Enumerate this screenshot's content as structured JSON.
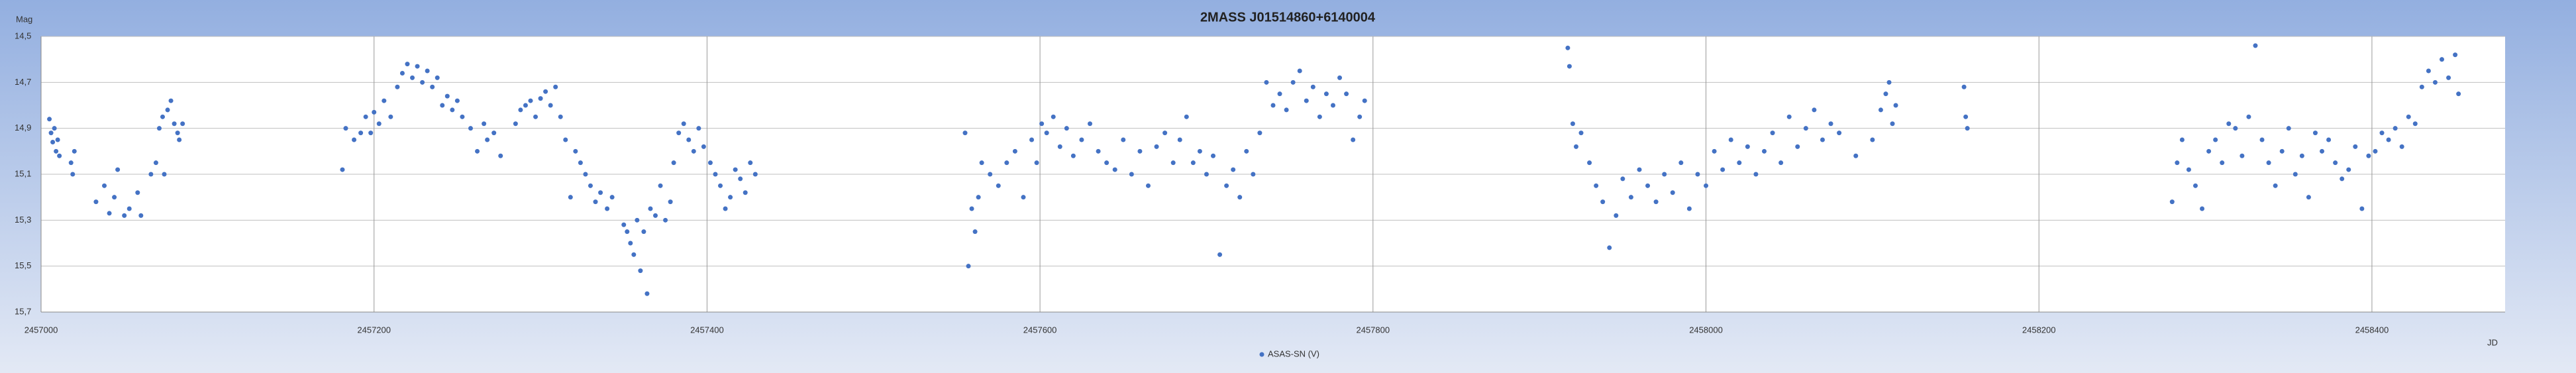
{
  "chart_data": {
    "type": "scatter",
    "title": "2MASS J01514860+6140004",
    "x_label": "JD",
    "y_label": "Mag",
    "xlim": [
      2457000,
      2458480
    ],
    "xticks": [
      2457000,
      2457200,
      2457400,
      2457600,
      2457800,
      2458000,
      2458200,
      2458400
    ],
    "ylim": [
      15.7,
      14.5
    ],
    "y_inverted": true,
    "yticks": [
      {
        "value": 14.5,
        "label": "14,5"
      },
      {
        "value": 14.7,
        "label": "14,7"
      },
      {
        "value": 14.9,
        "label": "14,9"
      },
      {
        "value": 15.1,
        "label": "15,1"
      },
      {
        "value": 15.3,
        "label": "15,3"
      },
      {
        "value": 15.5,
        "label": "15,5"
      },
      {
        "value": 15.7,
        "label": "15,7"
      }
    ],
    "grid": true,
    "legend": "bottom",
    "series": [
      {
        "name": "ASAS-SN (V)",
        "color": "#4472c4",
        "x": [
          2457005,
          2457006,
          2457007,
          2457008,
          2457009,
          2457010,
          2457011,
          2457018,
          2457019,
          2457020,
          2457033,
          2457038,
          2457041,
          2457044,
          2457046,
          2457050,
          2457053,
          2457058,
          2457060,
          2457066,
          2457069,
          2457071,
          2457073,
          2457074,
          2457076,
          2457078,
          2457080,
          2457082,
          2457083,
          2457085,
          2457181,
          2457183,
          2457188,
          2457192,
          2457195,
          2457198,
          2457200,
          2457203,
          2457206,
          2457210,
          2457214,
          2457217,
          2457220,
          2457223,
          2457226,
          2457229,
          2457232,
          2457235,
          2457238,
          2457241,
          2457244,
          2457247,
          2457250,
          2457253,
          2457258,
          2457262,
          2457266,
          2457268,
          2457272,
          2457276,
          2457285,
          2457288,
          2457291,
          2457294,
          2457297,
          2457300,
          2457303,
          2457306,
          2457309,
          2457312,
          2457315,
          2457318,
          2457321,
          2457324,
          2457327,
          2457330,
          2457333,
          2457336,
          2457340,
          2457343,
          2457350,
          2457352,
          2457354,
          2457356,
          2457358,
          2457360,
          2457362,
          2457364,
          2457366,
          2457369,
          2457372,
          2457375,
          2457378,
          2457380,
          2457383,
          2457386,
          2457389,
          2457392,
          2457395,
          2457398,
          2457402,
          2457405,
          2457408,
          2457411,
          2457414,
          2457417,
          2457420,
          2457423,
          2457426,
          2457429,
          2457555,
          2457557,
          2457559,
          2457561,
          2457563,
          2457565,
          2457570,
          2457575,
          2457580,
          2457585,
          2457590,
          2457595,
          2457598,
          2457601,
          2457604,
          2457608,
          2457612,
          2457616,
          2457620,
          2457625,
          2457630,
          2457635,
          2457640,
          2457645,
          2457650,
          2457655,
          2457660,
          2457665,
          2457670,
          2457675,
          2457680,
          2457684,
          2457688,
          2457692,
          2457696,
          2457700,
          2457704,
          2457708,
          2457712,
          2457716,
          2457720,
          2457724,
          2457728,
          2457732,
          2457736,
          2457740,
          2457744,
          2457748,
          2457752,
          2457756,
          2457760,
          2457764,
          2457768,
          2457772,
          2457776,
          2457780,
          2457784,
          2457788,
          2457792,
          2457795,
          2457917,
          2457918,
          2457920,
          2457922,
          2457925,
          2457930,
          2457934,
          2457938,
          2457942,
          2457946,
          2457950,
          2457955,
          2457960,
          2457965,
          2457970,
          2457975,
          2457980,
          2457985,
          2457990,
          2457995,
          2458000,
          2458005,
          2458010,
          2458015,
          2458020,
          2458025,
          2458030,
          2458035,
          2458040,
          2458045,
          2458050,
          2458055,
          2458060,
          2458065,
          2458070,
          2458075,
          2458080,
          2458090,
          2458100,
          2458105,
          2458108,
          2458110,
          2458112,
          2458114,
          2458155,
          2458156,
          2458157,
          2458280,
          2458283,
          2458286,
          2458290,
          2458294,
          2458298,
          2458302,
          2458306,
          2458310,
          2458314,
          2458318,
          2458322,
          2458326,
          2458330,
          2458334,
          2458338,
          2458342,
          2458346,
          2458350,
          2458354,
          2458358,
          2458362,
          2458366,
          2458370,
          2458374,
          2458378,
          2458382,
          2458386,
          2458390,
          2458394,
          2458398,
          2458402,
          2458406,
          2458410,
          2458414,
          2458418,
          2458422,
          2458426,
          2458430,
          2458434,
          2458438,
          2458442,
          2458446,
          2458450,
          2458452
        ],
        "values": [
          14.86,
          14.92,
          14.96,
          14.9,
          15.0,
          14.95,
          15.02,
          15.05,
          15.1,
          15.0,
          15.22,
          15.15,
          15.27,
          15.2,
          15.08,
          15.28,
          15.25,
          15.18,
          15.28,
          15.1,
          15.05,
          14.9,
          14.85,
          15.1,
          14.82,
          14.78,
          14.88,
          14.92,
          14.95,
          14.88,
          15.08,
          14.9,
          14.95,
          14.92,
          14.85,
          14.92,
          14.83,
          14.88,
          14.78,
          14.85,
          14.72,
          14.66,
          14.62,
          14.68,
          14.63,
          14.7,
          14.65,
          14.72,
          14.68,
          14.8,
          14.76,
          14.82,
          14.78,
          14.85,
          14.9,
          15.0,
          14.88,
          14.95,
          14.92,
          15.02,
          14.88,
          14.82,
          14.8,
          14.78,
          14.85,
          14.77,
          14.74,
          14.8,
          14.72,
          14.85,
          14.95,
          15.2,
          15.0,
          15.05,
          15.1,
          15.15,
          15.22,
          15.18,
          15.25,
          15.2,
          15.32,
          15.35,
          15.4,
          15.45,
          15.3,
          15.52,
          15.35,
          15.62,
          15.25,
          15.28,
          15.15,
          15.3,
          15.22,
          15.05,
          14.92,
          14.88,
          14.95,
          15.0,
          14.9,
          14.98,
          15.05,
          15.1,
          15.15,
          15.25,
          15.2,
          15.08,
          15.12,
          15.18,
          15.05,
          15.1,
          14.92,
          15.5,
          15.25,
          15.35,
          15.2,
          15.05,
          15.1,
          15.15,
          15.05,
          15.0,
          15.2,
          14.95,
          15.05,
          14.88,
          14.92,
          14.85,
          14.98,
          14.9,
          15.02,
          14.95,
          14.88,
          15.0,
          15.05,
          15.08,
          14.95,
          15.1,
          15.0,
          15.15,
          14.98,
          14.92,
          15.05,
          14.95,
          14.85,
          15.05,
          15.0,
          15.1,
          15.02,
          15.45,
          15.15,
          15.08,
          15.2,
          15.0,
          15.1,
          14.92,
          14.7,
          14.8,
          14.75,
          14.82,
          14.7,
          14.65,
          14.78,
          14.72,
          14.85,
          14.75,
          14.8,
          14.68,
          14.75,
          14.95,
          14.85,
          14.78,
          14.55,
          14.63,
          14.88,
          14.98,
          14.92,
          15.05,
          15.15,
          15.22,
          15.42,
          15.28,
          15.12,
          15.2,
          15.08,
          15.15,
          15.22,
          15.1,
          15.18,
          15.05,
          15.25,
          15.1,
          15.15,
          15.0,
          15.08,
          14.95,
          15.05,
          14.98,
          15.1,
          15.0,
          14.92,
          15.05,
          14.85,
          14.98,
          14.9,
          14.82,
          14.95,
          14.88,
          14.92,
          15.02,
          14.95,
          14.82,
          14.75,
          14.7,
          14.88,
          14.8,
          14.72,
          14.85,
          14.9,
          15.22,
          15.05,
          14.95,
          15.08,
          15.15,
          15.25,
          15.0,
          14.95,
          15.05,
          14.88,
          14.9,
          15.02,
          14.85,
          14.54,
          14.95,
          15.05,
          15.15,
          15.0,
          14.9,
          15.1,
          15.02,
          15.2,
          14.92,
          15.0,
          14.95,
          15.05,
          15.12,
          15.08,
          14.98,
          15.25,
          15.02,
          15.0,
          14.92,
          14.95,
          14.9,
          14.98,
          14.85,
          14.88,
          14.72,
          14.65,
          14.7,
          14.6,
          14.68,
          14.58,
          14.75
        ]
      }
    ]
  }
}
